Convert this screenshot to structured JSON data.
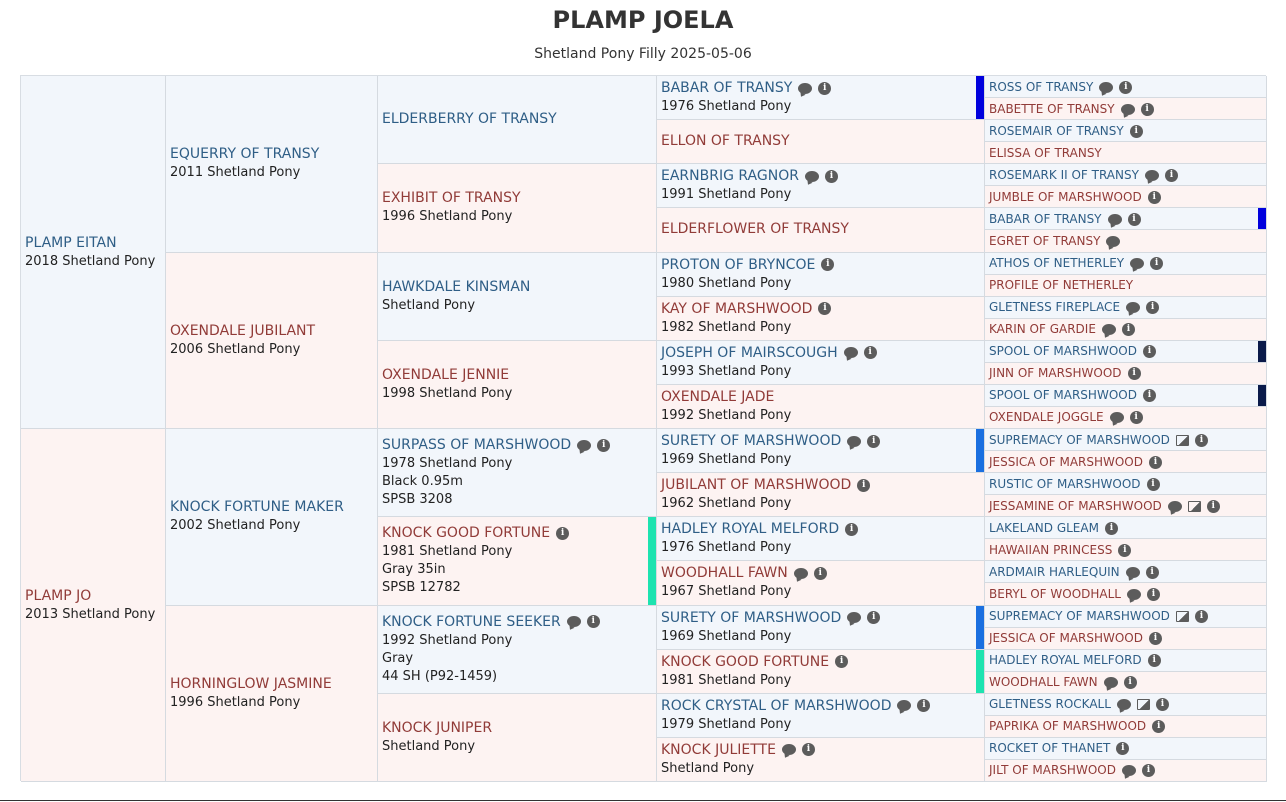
{
  "header": {
    "title": "PLAMP JOELA",
    "subtitle": "Shetland Pony Filly 2025-05-06"
  },
  "colors": {
    "male_bg": "#f2f6fb",
    "female_bg": "#fdf3f2",
    "male_text": "#2f5e86",
    "female_text": "#913b38"
  },
  "generations": [
    [
      {
        "name": "PLAMP EITAN",
        "sex": "M",
        "lines": [
          "2018 Shetland Pony"
        ],
        "icons": []
      },
      {
        "name": "PLAMP JO",
        "sex": "F",
        "lines": [
          "2013 Shetland Pony"
        ],
        "icons": []
      }
    ],
    [
      {
        "name": "EQUERRY OF TRANSY",
        "sex": "M",
        "lines": [
          "2011 Shetland Pony"
        ],
        "icons": []
      },
      {
        "name": "OXENDALE JUBILANT",
        "sex": "F",
        "lines": [
          "2006 Shetland Pony"
        ],
        "icons": []
      },
      {
        "name": "KNOCK FORTUNE MAKER",
        "sex": "M",
        "lines": [
          "2002 Shetland Pony"
        ],
        "icons": []
      },
      {
        "name": "HORNINGLOW JASMINE",
        "sex": "F",
        "lines": [
          "1996 Shetland Pony"
        ],
        "icons": []
      }
    ],
    [
      {
        "name": "ELDERBERRY OF TRANSY",
        "sex": "M",
        "lines": [],
        "icons": []
      },
      {
        "name": "EXHIBIT OF TRANSY",
        "sex": "F",
        "lines": [
          "1996 Shetland Pony"
        ],
        "icons": []
      },
      {
        "name": "HAWKDALE KINSMAN",
        "sex": "M",
        "lines": [
          "Shetland Pony"
        ],
        "icons": []
      },
      {
        "name": "OXENDALE JENNIE",
        "sex": "F",
        "lines": [
          "1998 Shetland Pony"
        ],
        "icons": []
      },
      {
        "name": "SURPASS OF MARSHWOOD",
        "sex": "M",
        "lines": [
          "1978 Shetland Pony",
          "Black 0.95m",
          "SPSB 3208"
        ],
        "icons": [
          "comment",
          "info"
        ]
      },
      {
        "name": "KNOCK GOOD FORTUNE",
        "sex": "F",
        "lines": [
          "1981 Shetland Pony",
          "Gray 35in",
          "SPSB 12782"
        ],
        "icons": [
          "info"
        ],
        "marker": "#1de3b0"
      },
      {
        "name": "KNOCK FORTUNE SEEKER",
        "sex": "M",
        "lines": [
          "1992 Shetland Pony",
          "Gray",
          "44 SH (P92-1459)"
        ],
        "icons": [
          "comment",
          "info"
        ]
      },
      {
        "name": "KNOCK JUNIPER",
        "sex": "F",
        "lines": [
          "Shetland Pony"
        ],
        "icons": []
      }
    ],
    [
      {
        "name": "BABAR OF TRANSY",
        "sex": "M",
        "lines": [
          "1976 Shetland Pony"
        ],
        "icons": [
          "comment",
          "info"
        ],
        "marker": "#0000dd"
      },
      {
        "name": "ELLON OF TRANSY",
        "sex": "F",
        "lines": [],
        "icons": []
      },
      {
        "name": "EARNBRIG RAGNOR",
        "sex": "M",
        "lines": [
          "1991 Shetland Pony"
        ],
        "icons": [
          "comment",
          "info"
        ]
      },
      {
        "name": "ELDERFLOWER OF TRANSY",
        "sex": "F",
        "lines": [],
        "icons": []
      },
      {
        "name": "PROTON OF BRYNCOE",
        "sex": "M",
        "lines": [
          "1980 Shetland Pony"
        ],
        "icons": [
          "info"
        ]
      },
      {
        "name": "KAY OF MARSHWOOD",
        "sex": "F",
        "lines": [
          "1982 Shetland Pony"
        ],
        "icons": [
          "info"
        ]
      },
      {
        "name": "JOSEPH OF MAIRSCOUGH",
        "sex": "M",
        "lines": [
          "1993 Shetland Pony"
        ],
        "icons": [
          "comment",
          "info"
        ]
      },
      {
        "name": "OXENDALE JADE",
        "sex": "F",
        "lines": [
          "1992 Shetland Pony"
        ],
        "icons": []
      },
      {
        "name": "SURETY OF MARSHWOOD",
        "sex": "M",
        "lines": [
          "1969 Shetland Pony"
        ],
        "icons": [
          "comment",
          "info"
        ],
        "marker": "#1a6fe0"
      },
      {
        "name": "JUBILANT OF MARSHWOOD",
        "sex": "F",
        "lines": [
          "1962 Shetland Pony"
        ],
        "icons": [
          "info"
        ]
      },
      {
        "name": "HADLEY ROYAL MELFORD",
        "sex": "M",
        "lines": [
          "1976 Shetland Pony"
        ],
        "icons": [
          "info"
        ]
      },
      {
        "name": "WOODHALL FAWN",
        "sex": "F",
        "lines": [
          "1967 Shetland Pony"
        ],
        "icons": [
          "comment",
          "info"
        ]
      },
      {
        "name": "SURETY OF MARSHWOOD",
        "sex": "M",
        "lines": [
          "1969 Shetland Pony"
        ],
        "icons": [
          "comment",
          "info"
        ],
        "marker": "#1a6fe0"
      },
      {
        "name": "KNOCK GOOD FORTUNE",
        "sex": "F",
        "lines": [
          "1981 Shetland Pony"
        ],
        "icons": [
          "info"
        ],
        "marker": "#1de3b0"
      },
      {
        "name": "ROCK CRYSTAL OF MARSHWOOD",
        "sex": "M",
        "lines": [
          "1979 Shetland Pony"
        ],
        "icons": [
          "comment",
          "info"
        ]
      },
      {
        "name": "KNOCK JULIETTE",
        "sex": "F",
        "lines": [
          "Shetland Pony"
        ],
        "icons": [
          "comment",
          "info"
        ]
      }
    ],
    [
      {
        "name": "ROSS OF TRANSY",
        "sex": "M",
        "icons": [
          "comment",
          "info"
        ]
      },
      {
        "name": "BABETTE OF TRANSY",
        "sex": "F",
        "icons": [
          "comment",
          "info"
        ]
      },
      {
        "name": "ROSEMAIR OF TRANSY",
        "sex": "M",
        "icons": [
          "info"
        ]
      },
      {
        "name": "ELISSA OF TRANSY",
        "sex": "F",
        "icons": []
      },
      {
        "name": "ROSEMARK II OF TRANSY",
        "sex": "M",
        "icons": [
          "comment",
          "info"
        ]
      },
      {
        "name": "JUMBLE OF MARSHWOOD",
        "sex": "F",
        "icons": [
          "info"
        ]
      },
      {
        "name": "BABAR OF TRANSY",
        "sex": "M",
        "icons": [
          "comment",
          "info"
        ],
        "marker": "#0000dd"
      },
      {
        "name": "EGRET OF TRANSY",
        "sex": "F",
        "icons": [
          "comment"
        ]
      },
      {
        "name": "ATHOS OF NETHERLEY",
        "sex": "M",
        "icons": [
          "comment",
          "info"
        ]
      },
      {
        "name": "PROFILE OF NETHERLEY",
        "sex": "F",
        "icons": []
      },
      {
        "name": "GLETNESS FIREPLACE",
        "sex": "M",
        "icons": [
          "comment",
          "info"
        ]
      },
      {
        "name": "KARIN OF GARDIE",
        "sex": "F",
        "icons": [
          "comment",
          "info"
        ]
      },
      {
        "name": "SPOOL OF MARSHWOOD",
        "sex": "M",
        "icons": [
          "info"
        ],
        "marker": "#0a1a4a"
      },
      {
        "name": "JINN OF MARSHWOOD",
        "sex": "F",
        "icons": [
          "info"
        ]
      },
      {
        "name": "SPOOL OF MARSHWOOD",
        "sex": "M",
        "icons": [
          "info"
        ],
        "marker": "#0a1a4a"
      },
      {
        "name": "OXENDALE JOGGLE",
        "sex": "F",
        "icons": [
          "comment",
          "info"
        ]
      },
      {
        "name": "SUPREMACY OF MARSHWOOD",
        "sex": "M",
        "icons": [
          "image",
          "info"
        ]
      },
      {
        "name": "JESSICA OF MARSHWOOD",
        "sex": "F",
        "icons": [
          "info"
        ]
      },
      {
        "name": "RUSTIC OF MARSHWOOD",
        "sex": "M",
        "icons": [
          "info"
        ]
      },
      {
        "name": "JESSAMINE OF MARSHWOOD",
        "sex": "F",
        "icons": [
          "comment",
          "image",
          "info"
        ]
      },
      {
        "name": "LAKELAND GLEAM",
        "sex": "M",
        "icons": [
          "info"
        ]
      },
      {
        "name": "HAWAIIAN PRINCESS",
        "sex": "F",
        "icons": [
          "info"
        ]
      },
      {
        "name": "ARDMAIR HARLEQUIN",
        "sex": "M",
        "icons": [
          "comment",
          "info"
        ]
      },
      {
        "name": "BERYL OF WOODHALL",
        "sex": "F",
        "icons": [
          "comment",
          "info"
        ]
      },
      {
        "name": "SUPREMACY OF MARSHWOOD",
        "sex": "M",
        "icons": [
          "image",
          "info"
        ]
      },
      {
        "name": "JESSICA OF MARSHWOOD",
        "sex": "F",
        "icons": [
          "info"
        ]
      },
      {
        "name": "HADLEY ROYAL MELFORD",
        "sex": "M",
        "icons": [
          "info"
        ]
      },
      {
        "name": "WOODHALL FAWN",
        "sex": "F",
        "icons": [
          "comment",
          "info"
        ]
      },
      {
        "name": "GLETNESS ROCKALL",
        "sex": "M",
        "icons": [
          "comment",
          "image",
          "info"
        ]
      },
      {
        "name": "PAPRIKA OF MARSHWOOD",
        "sex": "F",
        "icons": [
          "info"
        ]
      },
      {
        "name": "ROCKET OF THANET",
        "sex": "M",
        "icons": [
          "info"
        ]
      },
      {
        "name": "JILT OF MARSHWOOD",
        "sex": "F",
        "icons": [
          "comment",
          "info"
        ]
      }
    ]
  ]
}
